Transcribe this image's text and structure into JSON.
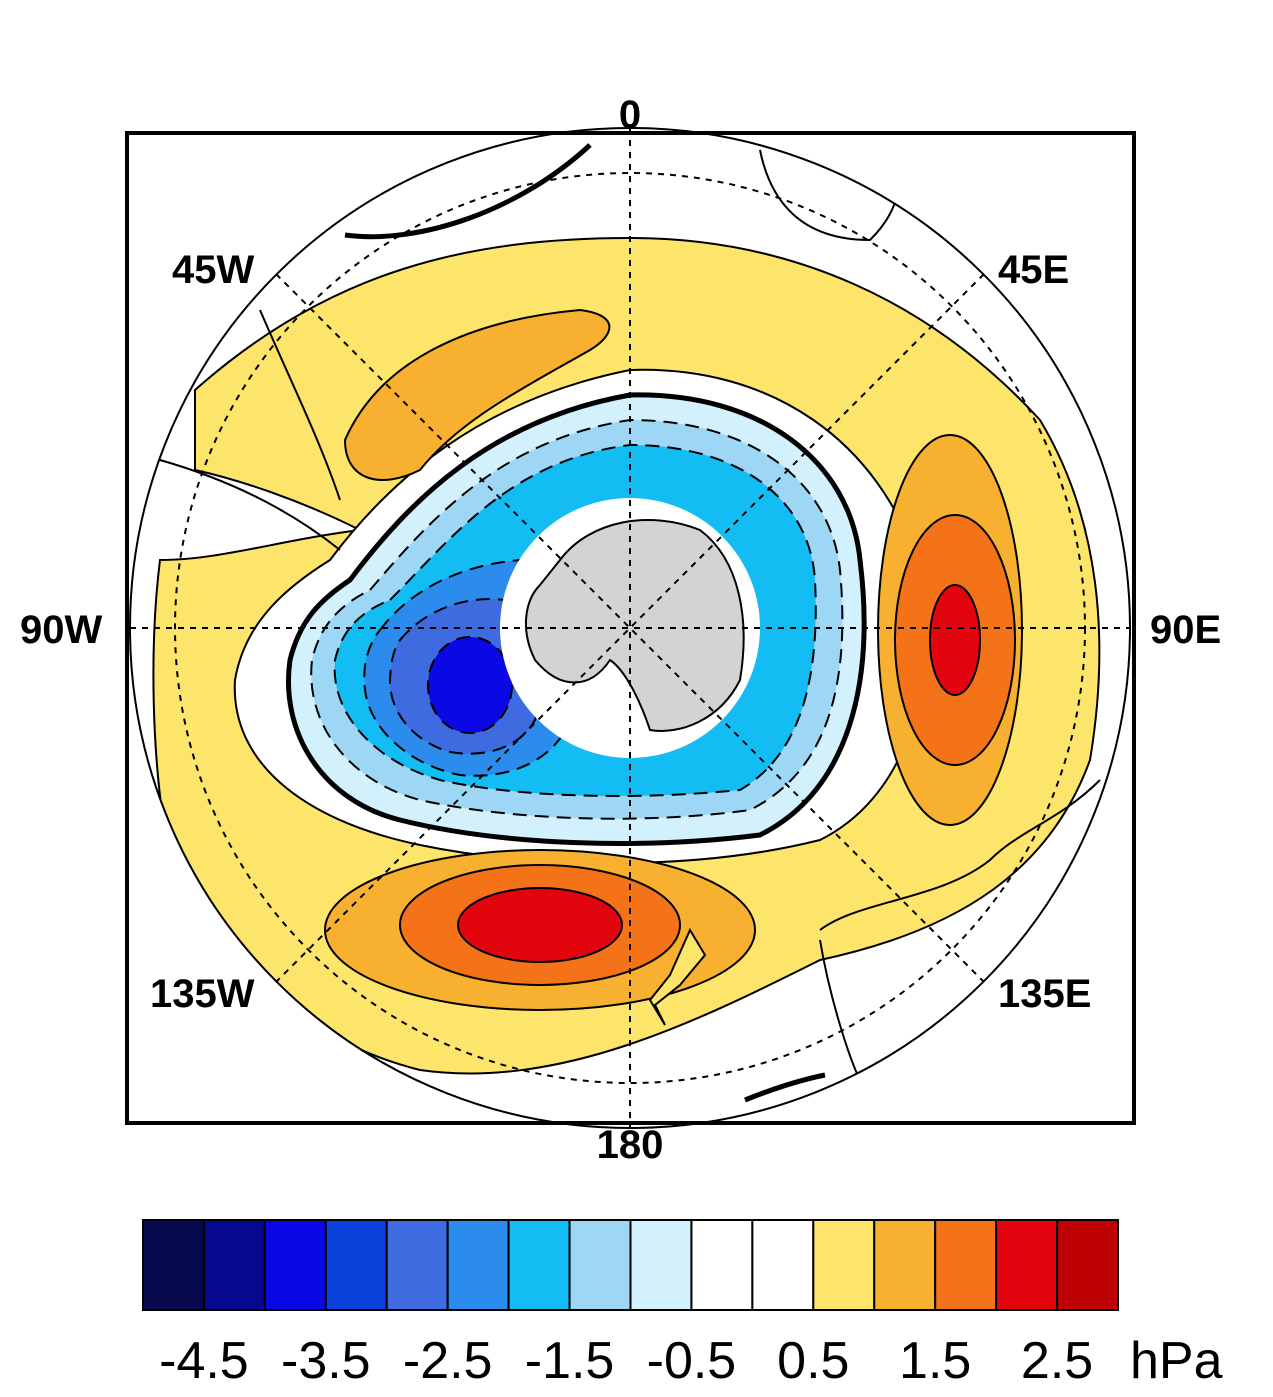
{
  "map": {
    "longitude_labels": {
      "top": "0",
      "bottom": "180",
      "left": "90W",
      "right": "90E",
      "upper_left": "45W",
      "upper_right": "45E",
      "lower_left": "135W",
      "lower_right": "135E"
    },
    "land_color": "#d3d3d3"
  },
  "colorbar": {
    "colors": [
      "#070a4d",
      "#06088f",
      "#0b08e6",
      "#0a41db",
      "#3e6be0",
      "#2b8cee",
      "#13bdf3",
      "#9ed7f6",
      "#d3f1fc",
      "#ffffff",
      "#ffffff",
      "#fde46a",
      "#f8b030",
      "#f57318",
      "#e3050d",
      "#bf0005"
    ],
    "labels": [
      "-4.5",
      "-3.5",
      "-2.5",
      "-1.5",
      "-0.5",
      "0.5",
      "1.5",
      "2.5"
    ],
    "unit": "hPa"
  }
}
